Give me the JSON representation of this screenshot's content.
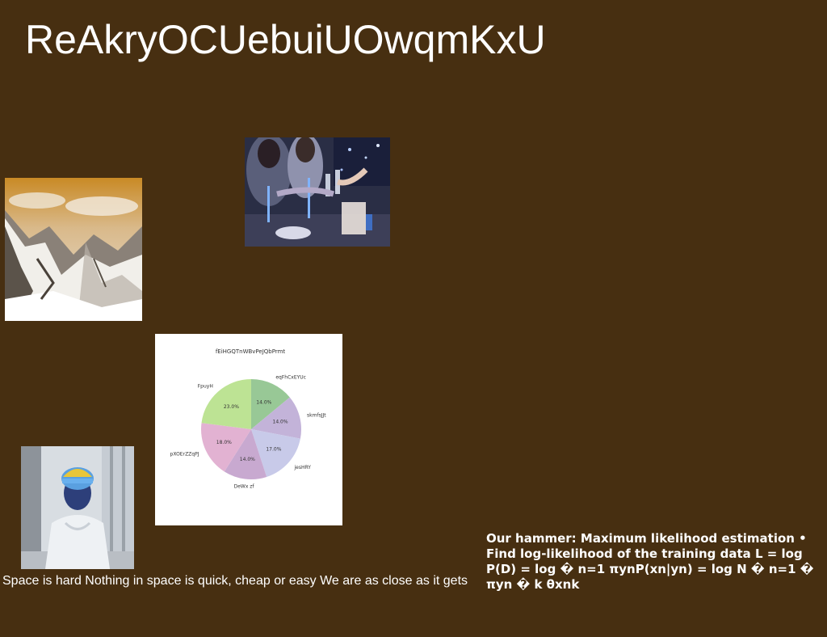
{
  "page": {
    "title": "ReAkryOCUebuiUOwqmKxU"
  },
  "images": {
    "mountain": {
      "name": "snowy-mountain-photo"
    },
    "party": {
      "name": "party-toast-photo"
    },
    "person": {
      "name": "person-portrait-photo"
    }
  },
  "caption": "Space is hard Nothing in space is quick, cheap or easy We are as close as it gets",
  "note": "Our hammer: Maximum likelihood estimation • Find log-likelihood of the training data L = log P(D) = log � n=1 πynP(xn|yn) = log N � n=1 � πyn � k θxnk",
  "chart_data": {
    "type": "pie",
    "title": "fEiHGQTnWBvPeJQbPrmt",
    "slices": [
      {
        "label": "eqFhCxEYUc",
        "value": 14.0,
        "pct": "14.0%",
        "color": "#98c896"
      },
      {
        "label": "skmfsJJt",
        "value": 14.0,
        "pct": "14.0%",
        "color": "#c3b3d9"
      },
      {
        "label": "jesHRY",
        "value": 17.0,
        "pct": "17.0%",
        "color": "#c8cae9"
      },
      {
        "label": "DeWx zf",
        "value": 14.0,
        "pct": "14.0%",
        "color": "#c8a9d0"
      },
      {
        "label": "pXOErZZqPJ",
        "value": 18.0,
        "pct": "18.0%",
        "color": "#e2b2d2"
      },
      {
        "label": "FpuyH",
        "value": 23.0,
        "pct": "23.0%",
        "color": "#bde394"
      }
    ]
  }
}
